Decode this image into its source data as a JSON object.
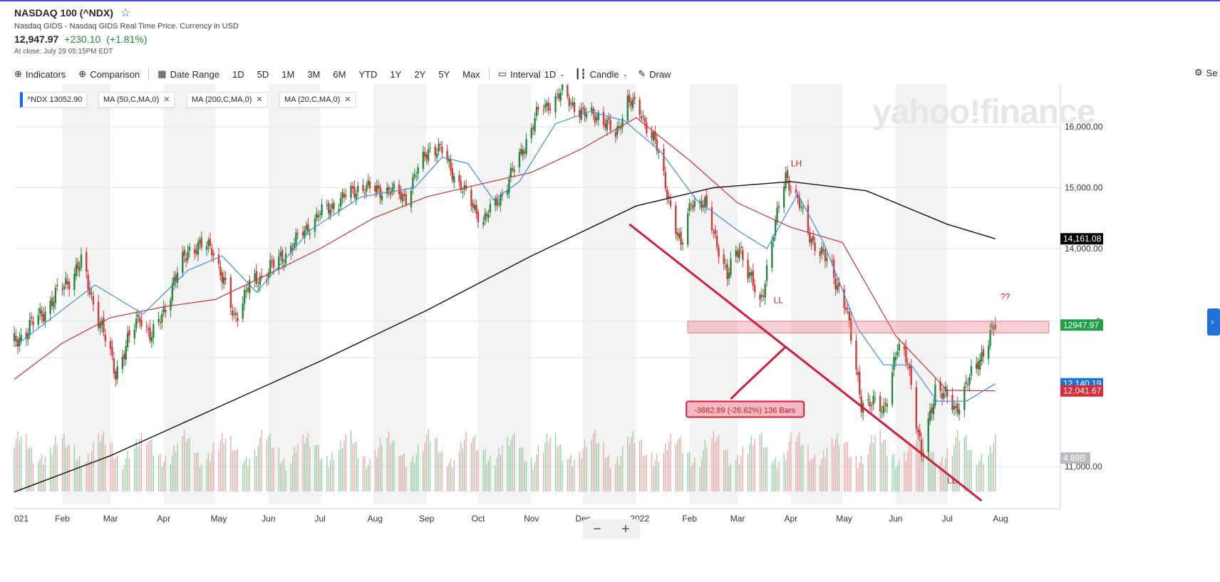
{
  "header": {
    "title": "NASDAQ 100 (^NDX)",
    "subtitle": "Nasdaq GIDS - Nasdaq GIDS Real Time Price. Currency in USD",
    "price": "12,947.97",
    "change": "+230.10",
    "change_pct": "(+1.81%)",
    "close_time": "At close: July 29 05:15PM EDT"
  },
  "toolbar": {
    "indicators": "Indicators",
    "comparison": "Comparison",
    "date_range": "Date Range",
    "ranges": [
      "1D",
      "5D",
      "1M",
      "3M",
      "6M",
      "YTD",
      "1Y",
      "2Y",
      "5Y",
      "Max"
    ],
    "interval_label": "Interval",
    "interval_value": "1D",
    "chart_type": "Candle",
    "draw": "Draw",
    "settings": "Se"
  },
  "chips": {
    "symbol": "^NDX",
    "symbol_value": "13052.90",
    "ma50": "MA (50,C,MA,0)",
    "ma200": "MA (200,C,MA,0)",
    "ma20": "MA (20,C,MA,0)"
  },
  "watermark": "yahoo!finance",
  "zoom": {
    "minus": "−",
    "plus": "+"
  },
  "colors": {
    "up": "#21873c",
    "down": "#d13a3a",
    "ma50": "#c8303b",
    "ma20": "#3a8fe0",
    "ma200": "#111111",
    "trend": "#cf1f3c"
  },
  "chart_data": {
    "type": "candlestick",
    "x_ticks": [
      "021",
      "Feb",
      "Mar",
      "Apr",
      "May",
      "Jun",
      "Jul",
      "Aug",
      "Sep",
      "Oct",
      "Nov",
      "Dec",
      "2022",
      "Feb",
      "Mar",
      "Apr",
      "May",
      "Jun",
      "Jul",
      "Aug"
    ],
    "y_ticks": [
      16000,
      15000,
      14000,
      11000
    ],
    "y_tick_labels": [
      "16,000.00",
      "15,000.00",
      "14,000.00",
      "11,000.00"
    ],
    "ylim": [
      10500,
      16800
    ],
    "price_path": [
      [
        "2021-01-04",
        12700
      ],
      [
        "2021-01-20",
        13100
      ],
      [
        "2021-02-12",
        13800
      ],
      [
        "2021-03-04",
        12300
      ],
      [
        "2021-03-18",
        13100
      ],
      [
        "2021-03-25",
        12750
      ],
      [
        "2021-04-15",
        14000
      ],
      [
        "2021-04-29",
        14050
      ],
      [
        "2021-05-12",
        13050
      ],
      [
        "2021-05-20",
        13450
      ],
      [
        "2021-06-10",
        13900
      ],
      [
        "2021-06-30",
        14550
      ],
      [
        "2021-07-08",
        14700
      ],
      [
        "2021-07-23",
        15000
      ],
      [
        "2021-08-10",
        14950
      ],
      [
        "2021-08-20",
        14850
      ],
      [
        "2021-09-02",
        15650
      ],
      [
        "2021-09-10",
        15600
      ],
      [
        "2021-09-20",
        15050
      ],
      [
        "2021-10-04",
        14450
      ],
      [
        "2021-10-15",
        14900
      ],
      [
        "2021-10-25",
        15500
      ],
      [
        "2021-11-05",
        16250
      ],
      [
        "2021-11-19",
        16550
      ],
      [
        "2021-12-01",
        16200
      ],
      [
        "2021-12-10",
        16200
      ],
      [
        "2021-12-20",
        15850
      ],
      [
        "2021-12-27",
        16450
      ],
      [
        "2022-01-04",
        16200
      ],
      [
        "2022-01-12",
        15750
      ],
      [
        "2022-01-27",
        14000
      ],
      [
        "2022-02-02",
        14800
      ],
      [
        "2022-02-10",
        14700
      ],
      [
        "2022-02-23",
        13600
      ],
      [
        "2022-03-02",
        14050
      ],
      [
        "2022-03-14",
        13200
      ],
      [
        "2022-03-29",
        15200
      ],
      [
        "2022-04-05",
        14800
      ],
      [
        "2022-04-12",
        14200
      ],
      [
        "2022-04-25",
        13700
      ],
      [
        "2022-05-03",
        13200
      ],
      [
        "2022-05-12",
        11900
      ],
      [
        "2022-05-25",
        11800
      ],
      [
        "2022-06-02",
        12600
      ],
      [
        "2022-06-08",
        12500
      ],
      [
        "2022-06-16",
        11100
      ],
      [
        "2022-06-24",
        12100
      ],
      [
        "2022-07-06",
        11800
      ],
      [
        "2022-07-18",
        12400
      ],
      [
        "2022-07-29",
        12948
      ]
    ],
    "ma20_path": [
      [
        "2021-01-04",
        12650
      ],
      [
        "2021-02-20",
        13500
      ],
      [
        "2021-03-20",
        13100
      ],
      [
        "2021-04-15",
        13700
      ],
      [
        "2021-05-05",
        13900
      ],
      [
        "2021-05-25",
        13400
      ],
      [
        "2021-06-25",
        14300
      ],
      [
        "2021-07-25",
        14850
      ],
      [
        "2021-08-25",
        15000
      ],
      [
        "2021-09-10",
        15500
      ],
      [
        "2021-09-25",
        15400
      ],
      [
        "2021-10-10",
        14800
      ],
      [
        "2021-10-25",
        15100
      ],
      [
        "2021-11-15",
        16050
      ],
      [
        "2021-12-05",
        16250
      ],
      [
        "2021-12-25",
        16100
      ],
      [
        "2022-01-15",
        15600
      ],
      [
        "2022-02-05",
        14800
      ],
      [
        "2022-03-01",
        14300
      ],
      [
        "2022-03-18",
        14000
      ],
      [
        "2022-04-05",
        14900
      ],
      [
        "2022-04-20",
        14100
      ],
      [
        "2022-05-10",
        12900
      ],
      [
        "2022-05-25",
        12400
      ],
      [
        "2022-06-10",
        12400
      ],
      [
        "2022-06-25",
        11900
      ],
      [
        "2022-07-12",
        11900
      ],
      [
        "2022-07-29",
        12140
      ]
    ],
    "ma50_path": [
      [
        "2021-01-04",
        12200
      ],
      [
        "2021-02-01",
        12700
      ],
      [
        "2021-03-01",
        13050
      ],
      [
        "2021-04-01",
        13200
      ],
      [
        "2021-05-01",
        13300
      ],
      [
        "2021-06-01",
        13650
      ],
      [
        "2021-07-01",
        14000
      ],
      [
        "2021-08-01",
        14500
      ],
      [
        "2021-09-01",
        14850
      ],
      [
        "2021-10-01",
        15050
      ],
      [
        "2021-11-01",
        15250
      ],
      [
        "2021-12-01",
        15650
      ],
      [
        "2022-01-01",
        16150
      ],
      [
        "2022-02-01",
        15450
      ],
      [
        "2022-03-01",
        14750
      ],
      [
        "2022-04-01",
        14350
      ],
      [
        "2022-05-01",
        14100
      ],
      [
        "2022-06-01",
        12800
      ],
      [
        "2022-07-01",
        12050
      ],
      [
        "2022-07-29",
        12041.67
      ]
    ],
    "ma200_path": [
      [
        "2021-01-04",
        10650
      ],
      [
        "2021-03-01",
        11150
      ],
      [
        "2021-05-01",
        11800
      ],
      [
        "2021-07-01",
        12450
      ],
      [
        "2021-09-01",
        13150
      ],
      [
        "2021-11-01",
        13900
      ],
      [
        "2022-01-01",
        14700
      ],
      [
        "2022-02-15",
        15000
      ],
      [
        "2022-04-01",
        15100
      ],
      [
        "2022-05-15",
        14950
      ],
      [
        "2022-07-01",
        14400
      ],
      [
        "2022-07-29",
        14161.08
      ]
    ],
    "resistance_zone": [
      12840,
      13000
    ],
    "annotations": [
      {
        "text": "LH",
        "date": "2022-04-01",
        "value": 15350
      },
      {
        "text": "LL",
        "date": "2022-03-22",
        "value": 13250
      },
      {
        "text": "LL",
        "date": "2022-07-01",
        "value": 10770
      },
      {
        "text": "??",
        "date": "2022-08-01",
        "value": 13300
      }
    ],
    "measure_label": "-3882.89 (-26.62%) 136 Bars",
    "price_labels": {
      "ma200": "14,161.08",
      "last": "12947.97",
      "ma20": "12,140.19",
      "ma50": "12,041.67",
      "volume": "4.89B",
      "partial_tick": "0"
    }
  }
}
